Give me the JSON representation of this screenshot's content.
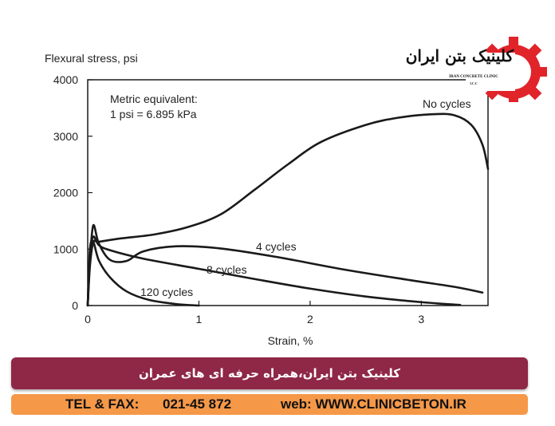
{
  "chart_data": {
    "type": "line",
    "ylabel": "Flexural stress, psi",
    "xlabel": "Strain, %",
    "xlim": [
      0,
      3.6
    ],
    "ylim": [
      0,
      4000
    ],
    "x_ticks": [
      0,
      1,
      2,
      3
    ],
    "x_tick_labels": [
      "0",
      "1",
      "2",
      "3"
    ],
    "y_ticks": [
      0,
      1000,
      2000,
      3000,
      4000
    ],
    "y_tick_labels": [
      "0",
      "1000",
      "2000",
      "3000",
      "4000"
    ],
    "annotation_lines": [
      "Metric equivalent:",
      "1 psi = 6.895 kPa"
    ],
    "grid": false,
    "series": [
      {
        "name": "No cycles",
        "x": [
          0.0,
          0.02,
          0.05,
          0.1,
          0.3,
          0.6,
          0.9,
          1.2,
          1.5,
          1.8,
          2.1,
          2.5,
          2.8,
          3.1,
          3.3,
          3.45,
          3.55,
          3.6
        ],
        "y": [
          0,
          700,
          1120,
          1130,
          1190,
          1260,
          1390,
          1620,
          2050,
          2500,
          2900,
          3200,
          3330,
          3390,
          3370,
          3200,
          2850,
          2420
        ]
      },
      {
        "name": "4 cycles",
        "x": [
          0.0,
          0.02,
          0.05,
          0.1,
          0.2,
          0.35,
          0.5,
          0.8,
          1.2,
          1.7,
          2.3,
          2.9,
          3.3,
          3.55
        ],
        "y": [
          0,
          800,
          1420,
          1100,
          810,
          790,
          960,
          1050,
          1010,
          860,
          640,
          450,
          330,
          230
        ]
      },
      {
        "name": "8 cycles",
        "x": [
          0.0,
          0.02,
          0.05,
          0.1,
          0.2,
          0.5,
          1.0,
          1.5,
          2.0,
          2.5,
          3.0,
          3.35
        ],
        "y": [
          0,
          900,
          1220,
          1070,
          980,
          830,
          650,
          470,
          300,
          160,
          60,
          10
        ]
      },
      {
        "name": "120 cycles",
        "x": [
          0.0,
          0.02,
          0.05,
          0.1,
          0.2,
          0.35,
          0.55,
          0.8,
          1.0
        ],
        "y": [
          0,
          1000,
          1130,
          800,
          500,
          250,
          100,
          25,
          0
        ]
      }
    ],
    "series_labels": [
      "No cycles",
      "4 cycles",
      "8 cycles",
      "120 cycles"
    ]
  },
  "logo": {
    "name_fa": "کلینیک بتن ایران",
    "name_en": "IRAN CONCRETE CLINIC",
    "abbr": "I.C.C"
  },
  "banner": {
    "text": "کلینیک بتن ایران،همراه حرفه ای های عمران"
  },
  "contact": {
    "tel_label": "TEL & FAX:",
    "tel_value": "021-45 872",
    "web_label": "web: WWW.CLINICBETON.IR"
  },
  "colors": {
    "line": "#1a1a1a",
    "banner_bg": "#8f2747",
    "contact_bg": "#f59848",
    "gear": "#e1242a"
  }
}
